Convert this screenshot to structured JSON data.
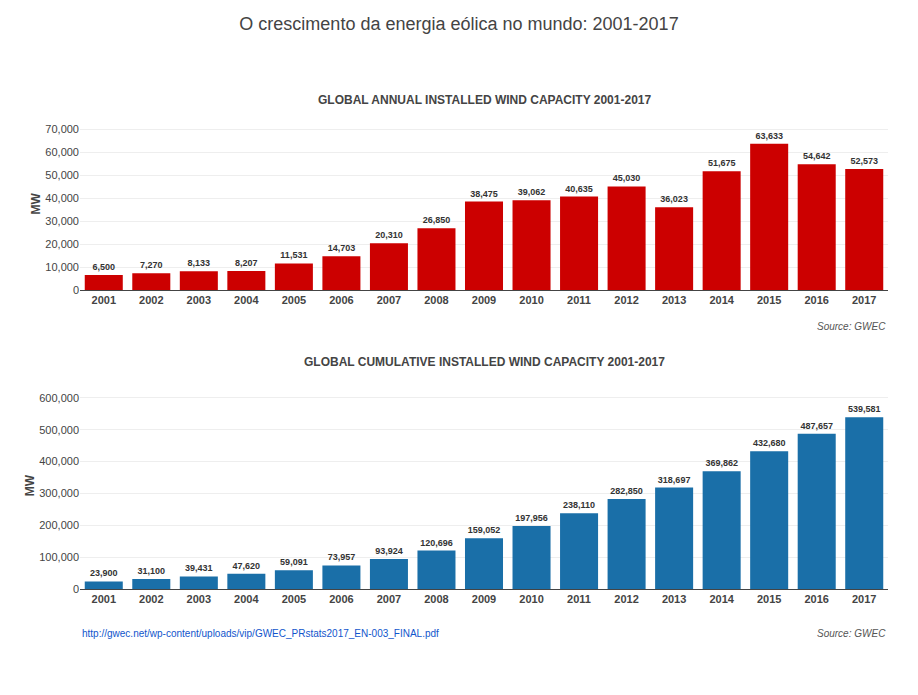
{
  "title": "O crescimento da energia eólica no mundo: 2001-2017",
  "annotations": [
    "http://gwec.net/wp-content/uploads/vip/GWEC_PRstats2017_EN-003_FINAL.pdf"
  ],
  "chart_data": [
    {
      "type": "bar",
      "title": "GLOBAL ANNUAL INSTALLED WIND CAPACITY 2001-2017",
      "ylabel": "MW",
      "categories": [
        "2001",
        "2002",
        "2003",
        "2004",
        "2005",
        "2006",
        "2007",
        "2008",
        "2009",
        "2010",
        "2011",
        "2012",
        "2013",
        "2014",
        "2015",
        "2016",
        "2017"
      ],
      "values": [
        6500,
        7270,
        8133,
        8207,
        11531,
        14703,
        20310,
        26850,
        38475,
        39062,
        40635,
        45030,
        36023,
        51675,
        63633,
        54642,
        52573
      ],
      "value_labels": [
        "6,500",
        "7,270",
        "8,133",
        "8,207",
        "11,531",
        "14,703",
        "20,310",
        "26,850",
        "38,475",
        "39,062",
        "40,635",
        "45,030",
        "36,023",
        "51,675",
        "63,633",
        "54,642",
        "52,573"
      ],
      "data_labels": true,
      "color": "#cc0000",
      "ylim": [
        0,
        75000
      ],
      "yticks": [
        0,
        {
          "value": 10000,
          "label": "10,000"
        },
        {
          "value": 20000,
          "label": "20,000"
        },
        {
          "value": 30000,
          "label": "30,000"
        },
        {
          "value": 40000,
          "label": "40,000"
        },
        {
          "value": 50000,
          "label": "50,000"
        },
        {
          "value": 60000,
          "label": "60,000"
        },
        {
          "value": 70000,
          "label": "70,000"
        }
      ],
      "grid": true,
      "annotations": [
        "Source: GWEC"
      ]
    },
    {
      "type": "bar",
      "title": "GLOBAL CUMULATIVE INSTALLED WIND CAPACITY 2001-2017",
      "ylabel": "MW",
      "categories": [
        "2001",
        "2002",
        "2003",
        "2004",
        "2005",
        "2006",
        "2007",
        "2008",
        "2009",
        "2010",
        "2011",
        "2012",
        "2013",
        "2014",
        "2015",
        "2016",
        "2017"
      ],
      "values": [
        23900,
        31100,
        39431,
        47620,
        59091,
        73957,
        93924,
        120696,
        159052,
        197956,
        238110,
        282850,
        318697,
        369862,
        432680,
        487657,
        539581
      ],
      "value_labels": [
        "23,900",
        "31,100",
        "39,431",
        "47,620",
        "59,091",
        "73,957",
        "93,924",
        "120,696",
        "159,052",
        "197,956",
        "238,110",
        "282,850",
        "318,697",
        "369,862",
        "432,680",
        "487,657",
        "539,581"
      ],
      "data_labels": true,
      "color": "#1a6fa8",
      "ylim": [
        0,
        650000
      ],
      "yticks": [
        0,
        {
          "value": 100000,
          "label": "100,000"
        },
        {
          "value": 200000,
          "label": "200,000"
        },
        {
          "value": 300000,
          "label": "300,000"
        },
        {
          "value": 400000,
          "label": "400,000"
        },
        {
          "value": 500000,
          "label": "500,000"
        },
        {
          "value": 600000,
          "label": "600,000"
        }
      ],
      "grid": true,
      "annotations": [
        "Source: GWEC"
      ]
    }
  ]
}
